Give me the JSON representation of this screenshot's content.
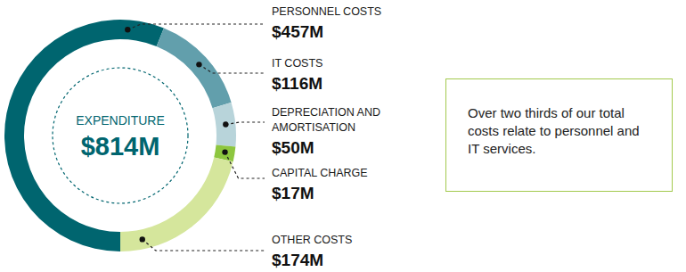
{
  "chart_data": {
    "type": "donut",
    "categories": [
      "PERSONNEL COSTS",
      "IT COSTS",
      "DEPRECIATION AND\nAMORTISATION",
      "CAPITAL CHARGE",
      "OTHER COSTS"
    ],
    "values": [
      457,
      116,
      50,
      17,
      174
    ],
    "value_labels": [
      "$457M",
      "$116M",
      "$50M",
      "$17M",
      "$174M"
    ],
    "colors": [
      "#00656f",
      "#629fac",
      "#b8d4da",
      "#8dc63f",
      "#d5e69c"
    ],
    "data_labels": true,
    "center_title": "EXPENDITURE",
    "total": 814,
    "total_label": "$814M",
    "annotation": "Over two thirds of our total costs relate to personnel and IT services."
  }
}
